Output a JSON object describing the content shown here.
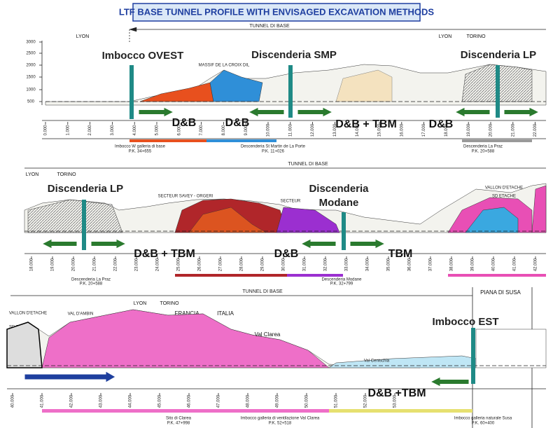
{
  "title": "LTF BASE TUNNEL PROFILE WITH ENVISAGED EXCAVATION METHODS",
  "panels": [
    {
      "tunnel_label": "TUNNEL DI BASE",
      "places": [
        "LYON",
        "LYON",
        "TORINO"
      ],
      "elevations": [
        "3000",
        "2500",
        "2000",
        "1500",
        "1000",
        "500"
      ],
      "shafts": [
        "Imbocco OVEST",
        "Discenderia SMP",
        "Discenderia LP"
      ],
      "methods": [
        "D&B",
        "D&B",
        "D&B + TBM",
        "D&B"
      ],
      "notes": [
        "MASSIF DE LA CROIX DIL"
      ],
      "km": [
        "0.000",
        "1.000",
        "2.000",
        "3.000",
        "4.000",
        "5.000",
        "6.000",
        "7.000",
        "8.000",
        "9.000",
        "10.000",
        "11.000",
        "12.000",
        "13.000",
        "14.000",
        "15.000",
        "16.000",
        "17.000",
        "18.000",
        "19.000",
        "20.000",
        "21.000",
        "22.000"
      ],
      "stations": [
        {
          "name": "Imbocco W galleria di base",
          "pk": "P.K. 34+655"
        },
        {
          "name": "Descenderia St Martin de La Porte",
          "pk": "P.K. 11+026"
        },
        {
          "name": "Descenderia La Praz",
          "pk": "P.K. 20+588"
        }
      ]
    },
    {
      "tunnel_label": "TUNNEL DI BASE",
      "places": [
        "LYON",
        "TORINO"
      ],
      "shafts": [
        "Discenderia LP",
        "Discenderia",
        "Modane"
      ],
      "methods": [
        "D&B + TBM",
        "D&B",
        "TBM"
      ],
      "notes": [
        "SECTEUR SAVEY - ORGERI",
        "SECTEUR",
        "VALLON D'ETACHE",
        "SD ETACHE"
      ],
      "km": [
        "18.000",
        "19.000",
        "20.000",
        "21.000",
        "22.000",
        "23.000",
        "24.000",
        "25.000",
        "26.000",
        "27.000",
        "28.000",
        "29.000",
        "30.000",
        "31.000",
        "32.000",
        "33.000",
        "34.000",
        "35.000",
        "36.000",
        "37.000",
        "38.000",
        "39.000",
        "40.000",
        "41.000",
        "42.000"
      ],
      "stations": [
        {
          "name": "Descenderia La Praz",
          "pk": "P.K. 20+588"
        },
        {
          "name": "Descenderia Modane",
          "pk": "P.K. 32+799"
        }
      ]
    },
    {
      "tunnel_label": "TUNNEL DI BASE",
      "places": [
        "LYON",
        "TORINO",
        "FRANCIA",
        "ITALIA"
      ],
      "shafts": [
        "Imbocco EST"
      ],
      "methods": [
        "D&B +TBM"
      ],
      "notes": [
        "PIANA DI SUSA",
        "VALLON D'ETACHE",
        "VAL D'AMBIN",
        "Val Clarea",
        "Val Cenischia",
        "SD ETACHE"
      ],
      "km": [
        "40.000",
        "41.000",
        "42.000",
        "43.000",
        "44.000",
        "45.000",
        "46.000",
        "47.000",
        "48.000",
        "49.000",
        "50.000",
        "51.000",
        "52.000",
        "53.000"
      ],
      "stations": [
        {
          "name": "Sito di Clarea",
          "pk": "P.K. 47+998"
        },
        {
          "name": "Imbocco galleria di ventilazione Val Clarea",
          "pk": "P.K. 52+518"
        },
        {
          "name": "Imbocco galleria naturale Susa",
          "pk": "P.K. 60+400"
        }
      ]
    }
  ]
}
